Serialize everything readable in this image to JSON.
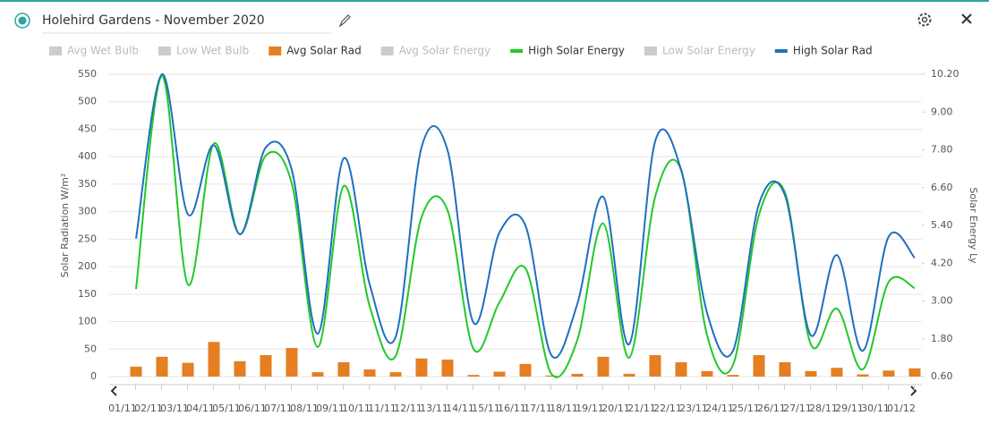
{
  "header": {
    "title": "Holehird Gardens - November 2020"
  },
  "chart_data": {
    "type": "bar",
    "ylabel": "Solar Radiation W/m²",
    "y2label": "Solar Energy Ly",
    "categories": [
      "01/11",
      "02/11",
      "03/11",
      "04/11",
      "05/11",
      "06/11",
      "07/11",
      "08/11",
      "09/11",
      "10/11",
      "11/11",
      "12/11",
      "13/11",
      "14/11",
      "15/11",
      "16/11",
      "17/11",
      "18/11",
      "19/11",
      "20/11",
      "21/11",
      "22/11",
      "23/11",
      "24/11",
      "25/11",
      "26/11",
      "27/11",
      "28/11",
      "29/11",
      "30/11",
      "01/12"
    ],
    "ylim": [
      0,
      550
    ],
    "yticks": [
      0,
      50,
      100,
      150,
      200,
      250,
      300,
      350,
      400,
      450,
      500,
      550
    ],
    "y2lim": [
      0.6,
      10.2
    ],
    "y2ticks": [
      {
        "value": 0.6,
        "label": "0.60"
      },
      {
        "value": 1.8,
        "label": "1.80"
      },
      {
        "value": 3,
        "label": "3.00"
      },
      {
        "value": 4.2,
        "label": "4.20"
      },
      {
        "value": 5.4,
        "label": "5.40"
      },
      {
        "value": 6.6,
        "label": "6.60"
      },
      {
        "value": 7.8,
        "label": "7.80"
      },
      {
        "value": 9,
        "label": "9.00"
      },
      {
        "value": 10.2,
        "label": "10.20"
      }
    ],
    "grid": true,
    "series": [
      {
        "name": "Avg Wet Bulb",
        "hidden": true
      },
      {
        "name": "Low Wet Bulb",
        "hidden": true
      },
      {
        "name": "Avg Solar Rad",
        "type": "bar",
        "color": "#e67e22",
        "values": [
          18,
          36,
          25,
          63,
          28,
          39,
          52,
          8,
          26,
          13,
          8,
          33,
          31,
          3,
          9,
          23,
          2,
          5,
          36,
          5,
          39,
          26,
          10,
          3,
          39,
          26,
          10,
          16,
          4,
          11,
          15
        ]
      },
      {
        "name": "Avg Solar Energy",
        "hidden": true
      },
      {
        "name": "High Solar Energy",
        "type": "line",
        "axis": "y2",
        "color": "#22c82a",
        "values": [
          3.38,
          10.14,
          3.52,
          8.0,
          5.12,
          7.62,
          6.73,
          1.54,
          6.65,
          2.84,
          1.25,
          5.66,
          5.88,
          1.48,
          2.96,
          4.04,
          0.69,
          1.76,
          5.46,
          1.2,
          6.31,
          7.16,
          1.91,
          0.97,
          5.74,
          6.45,
          1.62,
          2.76,
          0.83,
          3.61,
          3.41
        ]
      },
      {
        "name": "Low Solar Energy",
        "hidden": true
      },
      {
        "name": "High Solar Rad",
        "type": "line",
        "color": "#1f6fc0",
        "values": [
          251,
          550,
          295,
          421,
          259,
          417,
          376,
          78,
          397,
          168,
          72,
          417,
          412,
          98,
          262,
          275,
          39,
          132,
          327,
          59,
          428,
          376,
          116,
          47,
          314,
          330,
          75,
          221,
          47,
          255,
          216
        ]
      }
    ]
  }
}
